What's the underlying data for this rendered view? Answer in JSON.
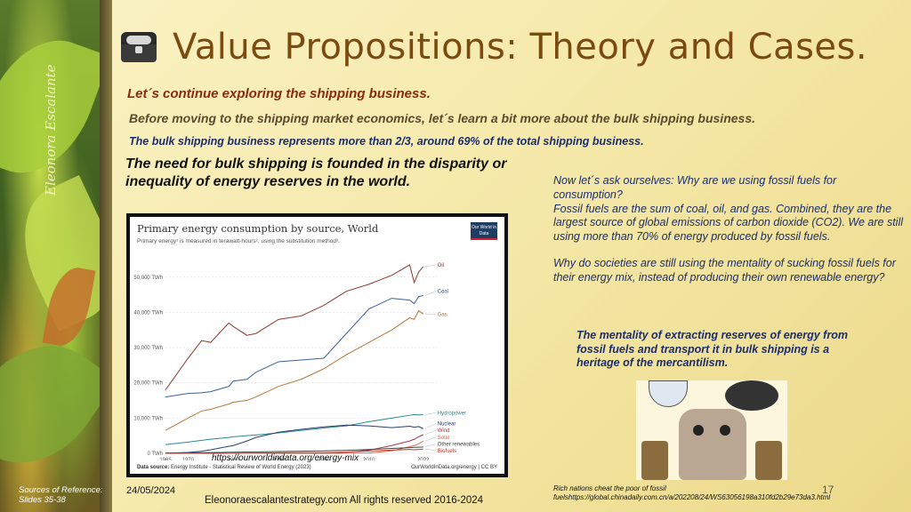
{
  "slide": {
    "title": "Value Propositions: Theory and Cases.",
    "line1": "Let´s continue exploring the shipping business.",
    "line2": "Before moving to the shipping market economics, let´s learn a bit more about the bulk shipping business.",
    "line3": "The bulk shipping business represents more than 2/3, around 69% of the total shipping business.",
    "line4": "The need for bulk shipping is founded in the disparity or inequality of energy reserves in the world.",
    "right_para1": "Now let´s ask ourselves: Why are we using fossil fuels for consumption?\nFossil fuels are the sum of coal, oil, and gas. Combined, they are the largest source of global emissions of carbon dioxide (CO2). We are still using more than 70% of energy produced by fossil fuels.",
    "right_para2": "Why do societies are still using the mentality of sucking fossil fuels for their energy mix, instead of producing their own renewable energy?",
    "right_bold": "The mentality of extracting reserves of energy from fossil fuels and transport it in bulk shipping is a heritage of the mercantilism.",
    "signature": "Eleonora Escalante",
    "sources": "Sources of Reference:\nSlides 35-38",
    "date": "24/05/2024",
    "footer": "Eleonoraescalantestrategy.com  All rights reserved 2016-2024",
    "caption": "Rich nations cheat the poor of fossil fuelshttps://global.chinadaily.com.cn/a/202208/24/WS63056198a310fd2b29e73da3.html",
    "slide_number": "17"
  },
  "chart": {
    "title": "Primary energy consumption by source, World",
    "subtitle": "Primary energy¹ is measured in terawatt-hours², using the substitution method³.",
    "logo": "Our World in Data",
    "url_overlay": "https://ourworldindata.org/energy-mix",
    "data_source_label": "Data source:",
    "data_source": "Energy Institute - Statistical Review of World Energy (2023)",
    "owid_link": "OurWorldInData.org/energy | CC BY"
  },
  "chart_data": {
    "type": "line",
    "title": "Primary energy consumption by source, World",
    "x": [
      1965,
      1970,
      1973,
      1975,
      1979,
      1980,
      1983,
      1985,
      1990,
      1995,
      2000,
      2005,
      2010,
      2015,
      2019,
      2020,
      2021,
      2022
    ],
    "xticks": [
      "1965",
      "1970",
      "1980",
      "1990",
      "2000",
      "2010",
      "2022"
    ],
    "yticks": [
      "0 TWh",
      "10,000 TWh",
      "20,000 TWh",
      "30,000 TWh",
      "40,000 TWh",
      "50,000 TWh"
    ],
    "ylim": [
      0,
      55000
    ],
    "xlim": [
      1965,
      2025
    ],
    "series": [
      {
        "name": "Oil",
        "color": "#8c3b2e",
        "values": [
          18000,
          27000,
          32000,
          31500,
          37000,
          36000,
          33500,
          34000,
          38000,
          39000,
          42000,
          46000,
          48000,
          50500,
          53500,
          48500,
          51500,
          53000
        ]
      },
      {
        "name": "Coal",
        "color": "#3b5fa0",
        "values": [
          16000,
          17000,
          17200,
          17500,
          19000,
          20500,
          21000,
          23000,
          26000,
          26500,
          27000,
          34000,
          41000,
          44000,
          43500,
          42500,
          44500,
          44800
        ]
      },
      {
        "name": "Gas",
        "color": "#b5773a",
        "values": [
          6500,
          10000,
          12000,
          12500,
          14000,
          14500,
          15000,
          16000,
          19000,
          21000,
          24000,
          28000,
          31500,
          35000,
          38500,
          38000,
          40500,
          39500
        ]
      },
      {
        "name": "Hydropower",
        "color": "#2c8a8f",
        "values": [
          2500,
          3200,
          3700,
          4000,
          4500,
          4700,
          5000,
          5200,
          5800,
          6500,
          7200,
          7800,
          9000,
          10000,
          10800,
          11000,
          10900,
          11000
        ]
      },
      {
        "name": "Nuclear",
        "color": "#2a3d6e",
        "values": [
          30,
          250,
          600,
          1000,
          2000,
          2200,
          3500,
          4500,
          6000,
          6800,
          7500,
          8000,
          7800,
          7300,
          7700,
          7400,
          7600,
          7000
        ]
      },
      {
        "name": "Wind",
        "color": "#a5354e",
        "values": [
          0,
          0,
          0,
          0,
          0,
          0,
          0,
          0,
          10,
          30,
          80,
          300,
          900,
          2200,
          3500,
          4000,
          4700,
          5300
        ]
      },
      {
        "name": "Solar",
        "color": "#d66a4a",
        "values": [
          0,
          0,
          0,
          0,
          0,
          0,
          0,
          0,
          0,
          0,
          5,
          20,
          100,
          700,
          1900,
          2200,
          2700,
          3500
        ]
      },
      {
        "name": "Other renewables",
        "color": "#444444",
        "values": [
          100,
          150,
          200,
          220,
          300,
          320,
          380,
          420,
          500,
          600,
          700,
          850,
          1100,
          1400,
          1600,
          1700,
          1750,
          1800
        ]
      },
      {
        "name": "Biofuels",
        "color": "#c0392b",
        "values": [
          0,
          0,
          0,
          0,
          10,
          20,
          60,
          100,
          150,
          180,
          200,
          350,
          650,
          900,
          1100,
          1000,
          1100,
          1200
        ]
      }
    ]
  },
  "colors": {
    "title": "#7a4a10",
    "accent_red": "#8a2a10",
    "navy": "#1c2d6b"
  }
}
